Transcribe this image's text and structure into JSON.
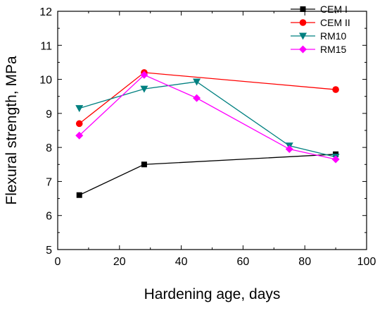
{
  "chart_data": {
    "type": "line",
    "title": "",
    "xlabel": "Hardening age, days",
    "ylabel": "Flexural strength, MPa",
    "xlim": [
      0,
      100
    ],
    "ylim": [
      5,
      12
    ],
    "x_ticks": [
      0,
      20,
      40,
      60,
      80,
      100
    ],
    "y_ticks": [
      5,
      6,
      7,
      8,
      9,
      10,
      11,
      12
    ],
    "grid": false,
    "legend_position": "top-right",
    "series": [
      {
        "name": "CEM I",
        "color": "#000000",
        "marker": "square",
        "x": [
          7,
          28,
          90
        ],
        "y": [
          6.6,
          7.5,
          7.8
        ]
      },
      {
        "name": "CEM II",
        "color": "#ff0000",
        "marker": "circle",
        "x": [
          7,
          28,
          90
        ],
        "y": [
          8.7,
          10.2,
          9.7
        ]
      },
      {
        "name": "RM10",
        "color": "#008080",
        "marker": "triangle-down",
        "x": [
          7,
          28,
          45,
          75,
          90
        ],
        "y": [
          9.15,
          9.72,
          9.93,
          8.05,
          7.72
        ]
      },
      {
        "name": "RM15",
        "color": "#ff00ff",
        "marker": "diamond",
        "x": [
          7,
          28,
          45,
          75,
          90
        ],
        "y": [
          8.35,
          10.13,
          9.45,
          7.95,
          7.65
        ]
      }
    ]
  }
}
